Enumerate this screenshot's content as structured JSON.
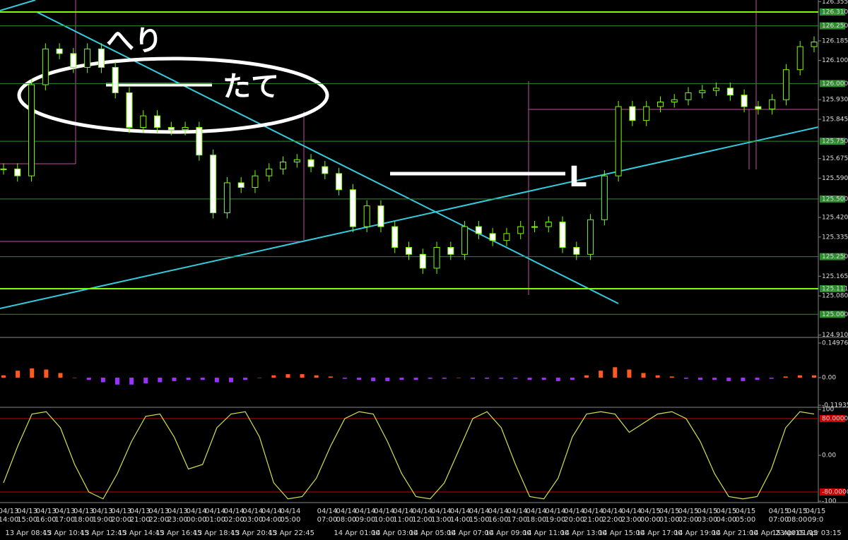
{
  "chart_data": [
    {
      "type": "candlestick",
      "values": [
        125.63,
        125.6,
        125.995,
        126.15,
        126.13,
        126.07,
        126.15,
        126.07,
        125.96,
        125.81,
        125.86,
        125.81,
        125.8,
        125.81,
        125.69,
        125.44,
        125.57,
        125.55,
        125.6,
        125.63,
        125.66,
        125.67,
        125.64,
        125.61,
        125.54,
        125.38,
        125.47,
        125.38,
        125.29,
        125.26,
        125.2,
        125.29,
        125.26,
        125.38,
        125.35,
        125.32,
        125.35,
        125.38,
        125.38,
        125.4,
        125.29,
        125.26,
        125.41,
        125.6,
        125.9,
        125.84,
        125.9,
        125.92,
        125.93,
        125.96,
        125.97,
        125.98,
        125.95,
        125.9,
        125.89,
        125.93,
        126.06,
        126.16,
        126.18
      ],
      "color": "#7cfc00",
      "ylim": [
        124.9,
        126.362
      ],
      "yticks": [
        126.355,
        {
          "value": 126.31,
          "label": "126.310",
          "level": true
        },
        {
          "value": 126.25,
          "label": "126.250",
          "level": true
        },
        126.185,
        {
          "value": 126.1,
          "label": "126.100"
        },
        {
          "value": 126.0,
          "label": "126.000",
          "level": true
        },
        {
          "value": 125.93,
          "label": "125.930"
        },
        125.845,
        {
          "value": 125.75,
          "label": "125.750",
          "level": true
        },
        125.675,
        {
          "value": 125.59,
          "label": "125.590"
        },
        {
          "value": 125.5,
          "label": "125.500",
          "level": true
        },
        {
          "value": 125.42,
          "label": "125.420"
        },
        125.335,
        {
          "value": 125.25,
          "label": "125.250",
          "level": true
        },
        125.165,
        {
          "value": 125.111,
          "label": "125.111",
          "level": true
        },
        {
          "value": 125.08,
          "label": "125.080"
        },
        {
          "value": 125.0,
          "label": "125.000",
          "level": true
        },
        {
          "value": 124.91,
          "label": "124.910"
        }
      ],
      "annotations": [
        "へり",
        "たて",
        "L"
      ]
    },
    {
      "type": "bar",
      "values": [
        0.01,
        0.03,
        0.04,
        0.035,
        0.02,
        0.0,
        -0.01,
        -0.02,
        -0.03,
        -0.03,
        -0.025,
        -0.02,
        -0.015,
        -0.01,
        -0.01,
        -0.02,
        -0.02,
        -0.01,
        0.0,
        0.01,
        0.015,
        0.015,
        0.01,
        0.005,
        -0.005,
        -0.01,
        -0.015,
        -0.015,
        -0.01,
        -0.01,
        -0.005,
        -0.005,
        0.0,
        -0.005,
        -0.005,
        -0.005,
        -0.005,
        -0.01,
        -0.01,
        -0.015,
        -0.01,
        0.01,
        0.03,
        0.045,
        0.035,
        0.02,
        0.01,
        0.005,
        -0.005,
        -0.01,
        -0.01,
        -0.015,
        -0.015,
        -0.01,
        -0.005,
        0.005,
        0.01,
        0.01
      ],
      "colors": {
        "positive": "#ff5a1e",
        "negative": "#9b30ff"
      },
      "ylim": [
        -0.1223,
        0.168
      ],
      "yticks": [
        0.14976,
        {
          "value": 0,
          "label": "0.00"
        },
        -0.11935
      ]
    },
    {
      "type": "line",
      "values": [
        -60,
        20,
        90,
        95,
        60,
        -20,
        -80,
        -95,
        -40,
        30,
        85,
        90,
        40,
        -30,
        -20,
        60,
        90,
        95,
        40,
        -60,
        -95,
        -90,
        -50,
        20,
        80,
        95,
        90,
        30,
        -40,
        -90,
        -95,
        -60,
        10,
        80,
        95,
        60,
        -20,
        -90,
        -95,
        -50,
        40,
        90,
        95,
        90,
        50,
        70,
        90,
        95,
        80,
        30,
        -40,
        -90,
        -95,
        -90,
        -30,
        60,
        95,
        90
      ],
      "color": "#d7e04a",
      "ylim": [
        -100,
        100
      ],
      "yticks": [
        100,
        {
          "value": 80,
          "label": "80.0000",
          "level": true
        },
        {
          "value": 0,
          "label": "0.00"
        },
        {
          "value": -80,
          "label": "-80.0000",
          "level": true
        },
        -100
      ]
    }
  ],
  "time_axis": {
    "upper": [
      [
        "04/13 14:00",
        "04/13 15:00",
        "04/13 16:00",
        "04/13 17:00",
        "04/13 18:00",
        "04/13 19:00",
        "04/13 20:00",
        "04/13 21:00",
        "04/13 22:00",
        "04/13 23:00",
        "04/14 00:00",
        "04/14 01:00",
        "04/14 02:00",
        "04/14 03:00",
        "04/14 04:00",
        "04/14 05:00"
      ],
      [
        "04/14 07:00",
        "04/14 08:00",
        "04/14 09:00",
        "04/14 10:00",
        "04/14 11:00",
        "04/14 12:00",
        "04/14 13:00",
        "04/14 14:00",
        "04/14 15:00",
        "04/14 16:00",
        "04/14 17:00",
        "04/14 18:00",
        "04/14 19:00",
        "04/14 20:00",
        "04/14 21:00",
        "04/14 22:00",
        "04/14 23:00",
        "04/15 00:00",
        "04/15 01:00",
        "04/15 02:00",
        "04/15 03:00",
        "04/15 04:00",
        "04/15 05:00"
      ],
      [
        "04/15 07:00",
        "04/15 08:00",
        "04/15 09:0"
      ]
    ],
    "lower": [
      [
        "13 Apr 08:45",
        "13 Apr 10:45",
        "13 Apr 12:45",
        "13 Apr 14:45",
        "13 Apr 16:45",
        "13 Apr 18:45",
        "13 Apr 20:45",
        "13 Apr 22:45"
      ],
      [
        "14 Apr 01:00",
        "14 Apr 03:00",
        "14 Apr 05:00",
        "14 Apr 07:00",
        "14 Apr 09:00",
        "14 Apr 11:00",
        "14 Apr 13:00",
        "14 Apr 15:00",
        "14 Apr 17:00",
        "14 Apr 19:00",
        "14 Apr 21:00",
        "14 Apr 23:00"
      ],
      [
        "15 Apr 01:15",
        "15 Apr 03:15"
      ]
    ]
  }
}
